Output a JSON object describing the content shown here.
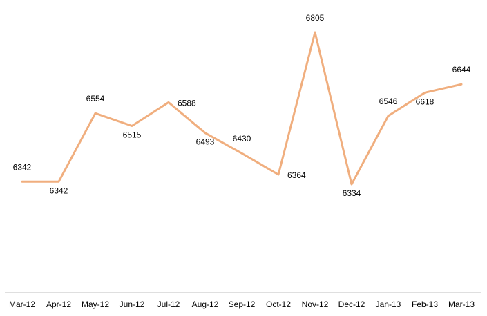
{
  "chart_data": {
    "type": "line",
    "title": "",
    "xlabel": "",
    "ylabel": "",
    "categories": [
      "Mar-12",
      "Apr-12",
      "May-12",
      "Jun-12",
      "Jul-12",
      "Aug-12",
      "Sep-12",
      "Oct-12",
      "Nov-12",
      "Dec-12",
      "Jan-13",
      "Feb-13",
      "Mar-13"
    ],
    "series": [
      {
        "values": [
          6342,
          6342,
          6554,
          6515,
          6588,
          6493,
          6430,
          6364,
          6805,
          6334,
          6546,
          6618,
          6644
        ],
        "color": "#F0AE7E"
      }
    ],
    "data_labels": [
      "6342",
      "6342",
      "6554",
      "6515",
      "6588",
      "6493",
      "6430",
      "6364",
      "6805",
      "6334",
      "6546",
      "6618",
      "6644"
    ],
    "grid": false,
    "legend": "none",
    "axis_color": "#BFBFBF"
  }
}
